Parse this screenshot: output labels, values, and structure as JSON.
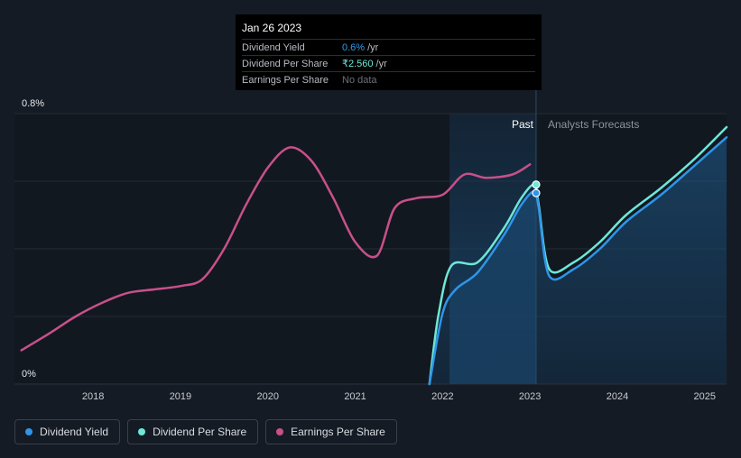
{
  "tooltip": {
    "date": "Jan 26 2023",
    "rows": [
      {
        "name": "Dividend Yield",
        "value": "0.6%",
        "unit": "/yr",
        "color": "#3a9ae8"
      },
      {
        "name": "Dividend Per Share",
        "value": "₹2.560",
        "unit": "/yr",
        "color": "#6ee7d8"
      },
      {
        "name": "Earnings Per Share",
        "value": "No data",
        "unit": "",
        "color": "#6b7078"
      }
    ]
  },
  "legend": [
    {
      "label": "Dividend Yield",
      "color": "#2f95ea"
    },
    {
      "label": "Dividend Per Share",
      "color": "#6ee7d8"
    },
    {
      "label": "Earnings Per Share",
      "color": "#c8508a"
    }
  ],
  "chart_data": {
    "type": "line",
    "y_top_label": "0.8%",
    "y_bottom_label": "0%",
    "ylim": [
      0,
      0.8
    ],
    "xlim": [
      2017.1,
      2025.25
    ],
    "x_ticks": [
      "2018",
      "2019",
      "2020",
      "2021",
      "2022",
      "2023",
      "2024",
      "2025"
    ],
    "x_tick_values": [
      2018,
      2019,
      2020,
      2021,
      2022,
      2023,
      2024,
      2025
    ],
    "grid": true,
    "past_label": "Past",
    "forecast_label": "Analysts Forecasts",
    "past_shade_start": 2022.08,
    "divider_x": 2023.07,
    "series": [
      {
        "name": "Earnings Per Share",
        "color": "#c8508a",
        "points": [
          [
            2017.18,
            0.1
          ],
          [
            2017.5,
            0.15
          ],
          [
            2017.8,
            0.2
          ],
          [
            2018.1,
            0.24
          ],
          [
            2018.4,
            0.27
          ],
          [
            2018.7,
            0.28
          ],
          [
            2019.0,
            0.29
          ],
          [
            2019.25,
            0.31
          ],
          [
            2019.5,
            0.4
          ],
          [
            2019.75,
            0.53
          ],
          [
            2020.0,
            0.64
          ],
          [
            2020.25,
            0.7
          ],
          [
            2020.5,
            0.66
          ],
          [
            2020.75,
            0.55
          ],
          [
            2021.0,
            0.42
          ],
          [
            2021.25,
            0.38
          ],
          [
            2021.45,
            0.52
          ],
          [
            2021.7,
            0.55
          ],
          [
            2022.0,
            0.56
          ],
          [
            2022.25,
            0.62
          ],
          [
            2022.5,
            0.61
          ],
          [
            2022.8,
            0.62
          ],
          [
            2023.0,
            0.65
          ]
        ]
      },
      {
        "name": "Dividend Per Share",
        "color": "#6ee7d8",
        "points": [
          [
            2021.85,
            0.0
          ],
          [
            2021.95,
            0.2
          ],
          [
            2022.1,
            0.35
          ],
          [
            2022.4,
            0.36
          ],
          [
            2022.7,
            0.46
          ],
          [
            2022.9,
            0.55
          ],
          [
            2023.05,
            0.59
          ],
          [
            2023.1,
            0.53
          ],
          [
            2023.22,
            0.34
          ],
          [
            2023.5,
            0.36
          ],
          [
            2023.8,
            0.42
          ],
          [
            2024.1,
            0.5
          ],
          [
            2024.5,
            0.58
          ],
          [
            2024.9,
            0.67
          ],
          [
            2025.25,
            0.76
          ]
        ]
      },
      {
        "name": "Dividend Yield",
        "color": "#2f95ea",
        "points": [
          [
            2021.85,
            0.0
          ],
          [
            2022.0,
            0.21
          ],
          [
            2022.15,
            0.28
          ],
          [
            2022.4,
            0.33
          ],
          [
            2022.7,
            0.44
          ],
          [
            2022.9,
            0.53
          ],
          [
            2023.05,
            0.57
          ],
          [
            2023.1,
            0.52
          ],
          [
            2023.22,
            0.32
          ],
          [
            2023.5,
            0.34
          ],
          [
            2023.8,
            0.4
          ],
          [
            2024.1,
            0.48
          ],
          [
            2024.5,
            0.56
          ],
          [
            2024.9,
            0.65
          ],
          [
            2025.25,
            0.73
          ]
        ]
      }
    ],
    "highlight_points": [
      {
        "series": "Dividend Per Share",
        "x": 2023.07,
        "y": 0.59
      },
      {
        "series": "Dividend Yield",
        "x": 2023.07,
        "y": 0.565
      }
    ]
  }
}
